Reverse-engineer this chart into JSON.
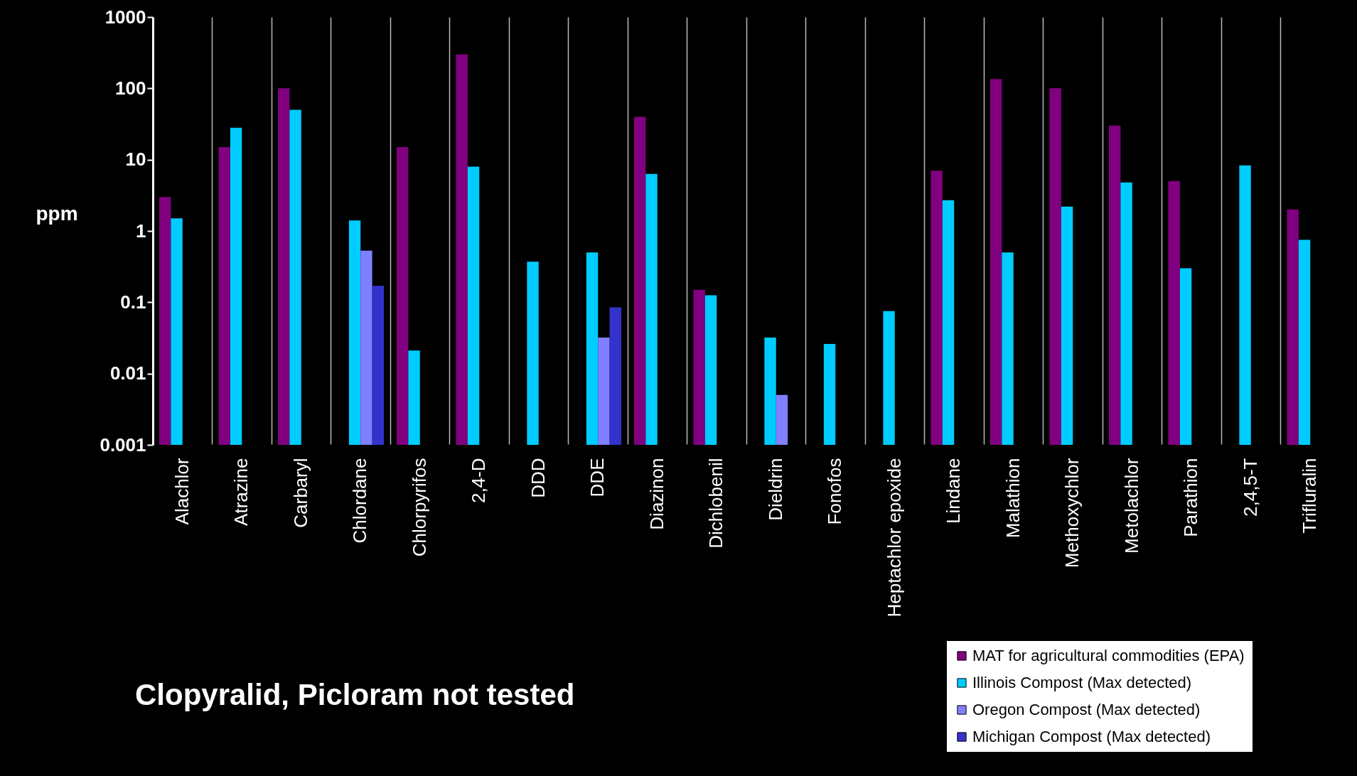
{
  "chart_data": {
    "type": "bar",
    "ylabel": "ppm",
    "log": "y",
    "ylim": [
      0.001,
      1000
    ],
    "yticks": [
      0.001,
      0.01,
      0.1,
      1,
      10,
      100,
      1000
    ],
    "grid": "x",
    "legend": "bottom right",
    "categories": [
      "Alachlor",
      "Atrazine",
      "Carbaryl",
      "Chlordane",
      "Chlorpyrifos",
      "2,4-D",
      "DDD",
      "DDE",
      "Diazinon",
      "Dichlobenil",
      "Dieldrin",
      "Fonofos",
      "Heptachlor epoxide",
      "Lindane",
      "Malathion",
      "Methoxychlor",
      "Metolachlor",
      "Parathion",
      "2,4,5-T",
      "Trifluralin"
    ],
    "series": [
      {
        "name": "MAT for agricultural commodities (EPA)",
        "color": "#800080",
        "values": [
          3,
          15,
          100,
          null,
          15,
          300,
          null,
          null,
          40,
          0.15,
          null,
          null,
          null,
          7,
          135,
          100,
          30,
          5,
          null,
          2
        ]
      },
      {
        "name": "Illinois Compost (Max detected)",
        "color": "#00ccff",
        "values": [
          1.5,
          28,
          50,
          1.4,
          0.021,
          8,
          0.37,
          0.5,
          6.3,
          0.125,
          0.032,
          0.026,
          0.075,
          2.7,
          0.5,
          2.2,
          4.8,
          0.3,
          8.3,
          0.75
        ]
      },
      {
        "name": "Oregon Compost (Max detected)",
        "color": "#8080ff",
        "values": [
          null,
          null,
          null,
          0.53,
          null,
          null,
          null,
          0.032,
          null,
          null,
          0.005,
          null,
          null,
          null,
          null,
          null,
          null,
          null,
          null,
          null
        ]
      },
      {
        "name": "Michigan Compost (Max detected)",
        "color": "#3333cc",
        "values": [
          null,
          null,
          null,
          0.17,
          null,
          null,
          null,
          0.085,
          null,
          null,
          null,
          null,
          null,
          null,
          null,
          null,
          null,
          null,
          null,
          null
        ]
      }
    ],
    "annotations": [
      "Clopyralid, Picloram not tested"
    ]
  }
}
